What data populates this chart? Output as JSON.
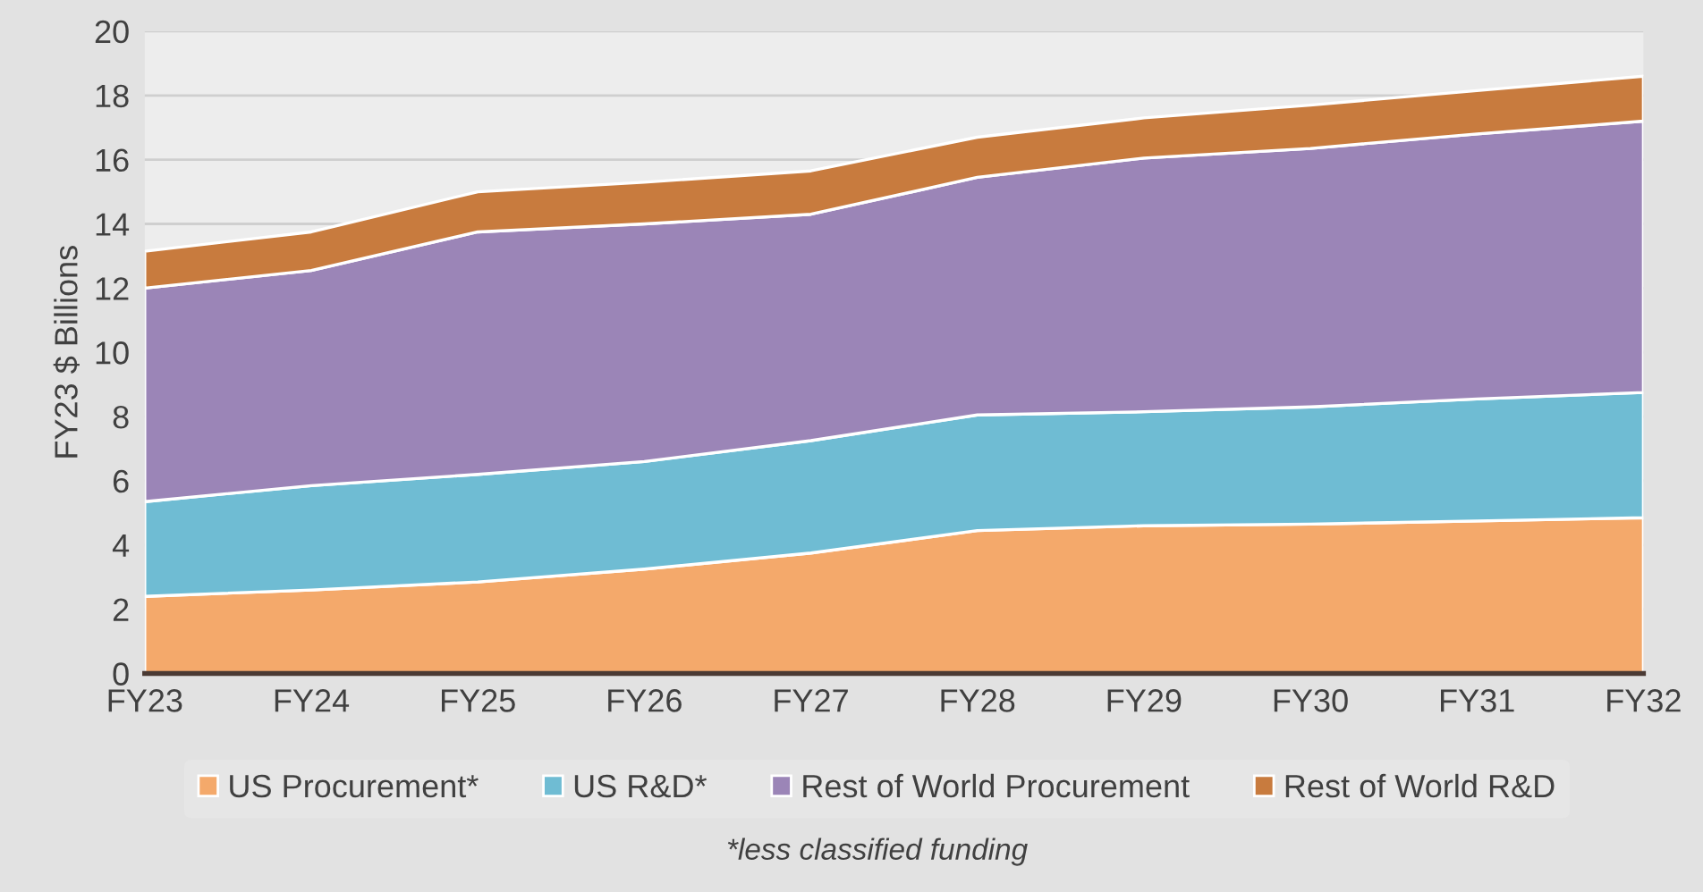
{
  "chart_data": {
    "type": "area",
    "stacked": true,
    "ylabel": "FY23 $ Billions",
    "categories": [
      "FY23",
      "FY24",
      "FY25",
      "FY26",
      "FY27",
      "FY28",
      "FY29",
      "FY30",
      "FY31",
      "FY32"
    ],
    "series": [
      {
        "name": "US Procurement*",
        "color": "#f4a96b",
        "values": [
          2.4,
          2.6,
          2.85,
          3.25,
          3.75,
          4.45,
          4.6,
          4.65,
          4.75,
          4.85
        ]
      },
      {
        "name": "US R&D*",
        "color": "#6fbcd3",
        "values": [
          2.95,
          3.25,
          3.35,
          3.35,
          3.5,
          3.6,
          3.55,
          3.65,
          3.8,
          3.9
        ]
      },
      {
        "name": "Rest of World Procurement",
        "color": "#9b85b7",
        "values": [
          6.65,
          6.7,
          7.55,
          7.4,
          7.05,
          7.4,
          7.9,
          8.05,
          8.25,
          8.45
        ]
      },
      {
        "name": "Rest of World R&D",
        "color": "#c87b3e",
        "values": [
          1.15,
          1.2,
          1.25,
          1.3,
          1.35,
          1.25,
          1.25,
          1.35,
          1.35,
          1.4
        ]
      }
    ],
    "ylim": [
      0,
      20
    ],
    "yticks": [
      0,
      2,
      4,
      6,
      8,
      10,
      12,
      14,
      16,
      18,
      20
    ],
    "grid": "y",
    "legend": "bottom",
    "annotations": [
      "*less classified funding"
    ]
  }
}
